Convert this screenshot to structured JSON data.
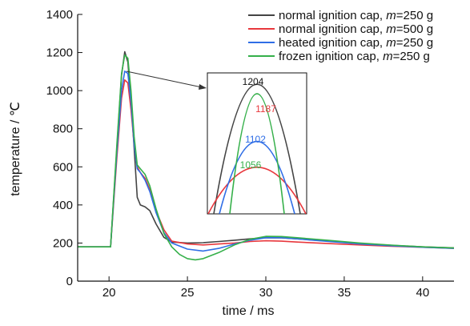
{
  "chart_data": {
    "type": "line",
    "xlabel": "time / ms",
    "ylabel": "temperature / ℃",
    "xlim": [
      18,
      42
    ],
    "ylim": [
      0,
      1400
    ],
    "xticks": [
      20,
      25,
      30,
      35,
      40
    ],
    "yticks": [
      0,
      200,
      400,
      600,
      800,
      1000,
      1200,
      1400
    ],
    "legend_position": "top-right",
    "series": [
      {
        "name_prefix": "normal ignition cap, ",
        "name_var": "m",
        "name_suffix": "=250 g",
        "color": "#444444",
        "peak": 1204,
        "points": [
          [
            18,
            180
          ],
          [
            20,
            180
          ],
          [
            20.1,
            180
          ],
          [
            20.5,
            700
          ],
          [
            20.8,
            1080
          ],
          [
            21.0,
            1204
          ],
          [
            21.2,
            1150
          ],
          [
            21.4,
            950
          ],
          [
            21.6,
            700
          ],
          [
            21.8,
            440
          ],
          [
            22.0,
            400
          ],
          [
            22.3,
            390
          ],
          [
            22.6,
            370
          ],
          [
            23.0,
            300
          ],
          [
            23.5,
            230
          ],
          [
            24.0,
            205
          ],
          [
            25.0,
            200
          ],
          [
            26.0,
            202
          ],
          [
            27.0,
            208
          ],
          [
            28.0,
            215
          ],
          [
            29.0,
            222
          ],
          [
            30.0,
            228
          ],
          [
            31.0,
            227
          ],
          [
            32.0,
            222
          ],
          [
            34.0,
            210
          ],
          [
            36.0,
            198
          ],
          [
            38.0,
            188
          ],
          [
            40.0,
            180
          ],
          [
            42.0,
            175
          ]
        ]
      },
      {
        "name_prefix": "normal ignition cap, ",
        "name_var": "m",
        "name_suffix": "=500 g",
        "color": "#e8383d",
        "peak": 1056,
        "points": [
          [
            18,
            180
          ],
          [
            20,
            180
          ],
          [
            20.1,
            180
          ],
          [
            20.5,
            650
          ],
          [
            20.8,
            960
          ],
          [
            21.0,
            1056
          ],
          [
            21.2,
            1040
          ],
          [
            21.4,
            900
          ],
          [
            21.6,
            720
          ],
          [
            21.8,
            600
          ],
          [
            22.0,
            570
          ],
          [
            22.3,
            540
          ],
          [
            22.6,
            480
          ],
          [
            23.0,
            370
          ],
          [
            23.5,
            270
          ],
          [
            24.0,
            210
          ],
          [
            25.0,
            195
          ],
          [
            26.0,
            190
          ],
          [
            27.0,
            195
          ],
          [
            28.0,
            200
          ],
          [
            29.0,
            208
          ],
          [
            30.0,
            212
          ],
          [
            31.0,
            210
          ],
          [
            32.0,
            205
          ],
          [
            34.0,
            197
          ],
          [
            36.0,
            190
          ],
          [
            38.0,
            183
          ],
          [
            40.0,
            178
          ],
          [
            42.0,
            172
          ]
        ]
      },
      {
        "name_prefix": "heated ignition cap, ",
        "name_var": "m",
        "name_suffix": "=250 g",
        "color": "#2f6ee6",
        "peak": 1102,
        "points": [
          [
            18,
            180
          ],
          [
            20,
            180
          ],
          [
            20.1,
            180
          ],
          [
            20.5,
            680
          ],
          [
            20.8,
            1000
          ],
          [
            21.0,
            1102
          ],
          [
            21.2,
            1090
          ],
          [
            21.4,
            940
          ],
          [
            21.6,
            720
          ],
          [
            21.8,
            590
          ],
          [
            22.0,
            570
          ],
          [
            22.3,
            530
          ],
          [
            22.6,
            470
          ],
          [
            23.0,
            360
          ],
          [
            23.5,
            255
          ],
          [
            24.0,
            200
          ],
          [
            25.0,
            168
          ],
          [
            26.0,
            158
          ],
          [
            27.0,
            172
          ],
          [
            28.0,
            195
          ],
          [
            29.0,
            215
          ],
          [
            30.0,
            228
          ],
          [
            31.0,
            228
          ],
          [
            32.0,
            222
          ],
          [
            34.0,
            208
          ],
          [
            36.0,
            195
          ],
          [
            38.0,
            186
          ],
          [
            40.0,
            178
          ],
          [
            42.0,
            172
          ]
        ]
      },
      {
        "name_prefix": "frozen ignition cap, ",
        "name_var": "m",
        "name_suffix": "=250 g",
        "color": "#35b04a",
        "peak": 1187,
        "points": [
          [
            18,
            180
          ],
          [
            20,
            180
          ],
          [
            20.1,
            180
          ],
          [
            20.5,
            720
          ],
          [
            20.8,
            1090
          ],
          [
            21.0,
            1187
          ],
          [
            21.2,
            1170
          ],
          [
            21.4,
            1000
          ],
          [
            21.6,
            760
          ],
          [
            21.8,
            610
          ],
          [
            22.0,
            590
          ],
          [
            22.3,
            560
          ],
          [
            22.6,
            500
          ],
          [
            23.0,
            380
          ],
          [
            23.5,
            250
          ],
          [
            24.0,
            180
          ],
          [
            24.5,
            140
          ],
          [
            25.0,
            118
          ],
          [
            25.5,
            112
          ],
          [
            26.0,
            118
          ],
          [
            27.0,
            150
          ],
          [
            28.0,
            190
          ],
          [
            29.0,
            220
          ],
          [
            30.0,
            235
          ],
          [
            31.0,
            234
          ],
          [
            32.0,
            228
          ],
          [
            34.0,
            214
          ],
          [
            36.0,
            200
          ],
          [
            38.0,
            189
          ],
          [
            40.0,
            180
          ],
          [
            42.0,
            174
          ]
        ]
      }
    ],
    "inset": {
      "labels": [
        "1204",
        "1187",
        "1102",
        "1056"
      ]
    }
  }
}
